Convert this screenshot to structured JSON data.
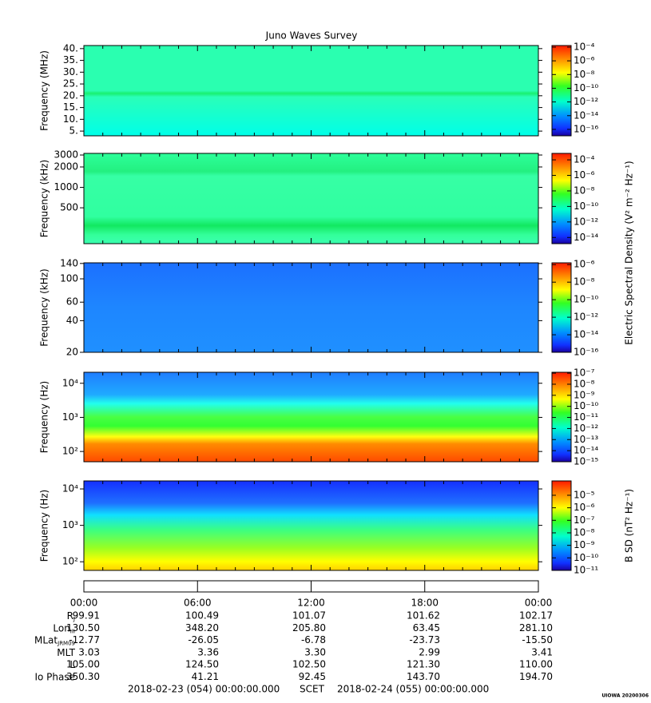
{
  "title": "Juno Waves Survey",
  "chart_data": [
    {
      "type": "spectrogram",
      "y_label": "Frequency (MHz)",
      "log_y": false,
      "ylim": [
        3,
        41.3
      ],
      "yticks": [
        {
          "value": 40,
          "label": "40."
        },
        {
          "value": 35,
          "label": "35."
        },
        {
          "value": 30,
          "label": "30."
        },
        {
          "value": 25,
          "label": "25."
        },
        {
          "value": 20,
          "label": "20."
        },
        {
          "value": 15,
          "label": "15."
        },
        {
          "value": 10,
          "label": "10."
        },
        {
          "value": 5,
          "label": "5."
        }
      ],
      "colorbar": {
        "log": true,
        "lim": [
          1.15e-17,
          0.00017
        ],
        "ticks": [
          {
            "value": 0.0001,
            "label": "10⁻⁴"
          },
          {
            "value": 1e-06,
            "label": "10⁻⁶"
          },
          {
            "value": 1e-08,
            "label": "10⁻⁸"
          },
          {
            "value": 1e-10,
            "label": "10⁻¹⁰"
          },
          {
            "value": 1e-12,
            "label": "10⁻¹²"
          },
          {
            "value": 1e-14,
            "label": "10⁻¹⁴"
          },
          {
            "value": 1e-16,
            "label": "10⁻¹⁶"
          }
        ]
      }
    },
    {
      "type": "spectrogram",
      "y_label": "Frequency (kHz)",
      "log_y": true,
      "ylim": [
        148,
        3170
      ],
      "yticks": [
        3000,
        2000,
        1000,
        500
      ],
      "colorbar": {
        "log": true,
        "lim": [
          1.6e-15,
          0.00068
        ],
        "label": "Electric Spectral Density (V² m⁻² Hz⁻¹)",
        "ticks": [
          {
            "value": 0.0001,
            "label": "10⁻⁴"
          },
          {
            "value": 1e-06,
            "label": "10⁻⁶"
          },
          {
            "value": 1e-08,
            "label": "10⁻⁸"
          },
          {
            "value": 1e-10,
            "label": "10⁻¹⁰"
          },
          {
            "value": 1e-12,
            "label": "10⁻¹²"
          },
          {
            "value": 1e-14,
            "label": "10⁻¹⁴"
          }
        ]
      }
    },
    {
      "type": "spectrogram",
      "y_label": "Frequency (kHz)",
      "log_y": true,
      "ylim": [
        20,
        142
      ],
      "yticks": [
        140,
        100,
        60,
        40,
        20
      ],
      "colorbar": {
        "log": true,
        "lim": [
          1e-16,
          1.6e-06
        ],
        "ticks": [
          {
            "value": 1e-06,
            "label": "10⁻⁶"
          },
          {
            "value": 1e-08,
            "label": "10⁻⁸"
          },
          {
            "value": 1e-10,
            "label": "10⁻¹⁰"
          },
          {
            "value": 1e-12,
            "label": "10⁻¹²"
          },
          {
            "value": 1e-14,
            "label": "10⁻¹⁴"
          },
          {
            "value": 1e-16,
            "label": "10⁻¹⁶"
          }
        ]
      }
    },
    {
      "type": "spectrogram",
      "y_label": "Frequency (Hz)",
      "log_y": true,
      "ylim": [
        50,
        21000
      ],
      "yticks": [
        {
          "value": 10000,
          "label": "10⁴"
        },
        {
          "value": 1000,
          "label": "10³"
        },
        {
          "value": 100,
          "label": "10²"
        }
      ],
      "colorbar": {
        "log": true,
        "lim": [
          1e-15,
          1.2e-07
        ],
        "ticks": [
          {
            "value": 1e-07,
            "label": "10⁻⁷"
          },
          {
            "value": 1e-08,
            "label": "10⁻⁸"
          },
          {
            "value": 1e-09,
            "label": "10⁻⁹"
          },
          {
            "value": 1e-10,
            "label": "10⁻¹⁰"
          },
          {
            "value": 1e-11,
            "label": "10⁻¹¹"
          },
          {
            "value": 1e-12,
            "label": "10⁻¹²"
          },
          {
            "value": 1e-13,
            "label": "10⁻¹³"
          },
          {
            "value": 1e-14,
            "label": "10⁻¹⁴"
          },
          {
            "value": 1e-15,
            "label": "10⁻¹⁵"
          }
        ]
      }
    },
    {
      "type": "spectrogram",
      "y_label": "Frequency (Hz)",
      "log_y": true,
      "ylim": [
        58,
        16600
      ],
      "yticks": [
        {
          "value": 10000,
          "label": "10⁴"
        },
        {
          "value": 1000,
          "label": "10³"
        },
        {
          "value": 100,
          "label": "10²"
        }
      ],
      "colorbar": {
        "log": true,
        "lim": [
          1e-11,
          0.00014
        ],
        "label": "B SD (nT² Hz⁻¹)",
        "ticks": [
          {
            "value": 1e-05,
            "label": "10⁻⁵"
          },
          {
            "value": 1e-06,
            "label": "10⁻⁶"
          },
          {
            "value": 1e-07,
            "label": "10⁻⁷"
          },
          {
            "value": 1e-08,
            "label": "10⁻⁸"
          },
          {
            "value": 1e-09,
            "label": "10⁻⁹"
          },
          {
            "value": 1e-10,
            "label": "10⁻¹⁰"
          },
          {
            "value": 1e-11,
            "label": "10⁻¹¹"
          }
        ]
      }
    }
  ],
  "time_axis": {
    "ticks": [
      "00:00",
      "06:00",
      "12:00",
      "18:00",
      "00:00"
    ]
  },
  "ephemeris": {
    "rows": [
      {
        "label": "R",
        "sub": "J",
        "values": [
          "99.91",
          "100.49",
          "101.07",
          "101.62",
          "102.17"
        ]
      },
      {
        "label": "Lon",
        "sub": "III",
        "values": [
          "130.50",
          "348.20",
          "205.80",
          "63.45",
          "281.10"
        ]
      },
      {
        "label": "MLat",
        "sub": "JRM09",
        "values": [
          "-12.77",
          "-26.05",
          "-6.78",
          "-23.73",
          "-15.50"
        ]
      },
      {
        "label": "MLT",
        "values": [
          "3.03",
          "3.36",
          "3.30",
          "2.99",
          "3.41"
        ]
      },
      {
        "label": "L",
        "values": [
          "105.00",
          "124.50",
          "102.50",
          "121.30",
          "110.00"
        ]
      },
      {
        "label": "Io Phase",
        "values": [
          "350.30",
          "41.21",
          "92.45",
          "143.70",
          "194.70"
        ]
      }
    ]
  },
  "footer": {
    "start": "2018-02-23 (054) 00:00:00.000",
    "scet": "SCET",
    "end": "2018-02-24 (055) 00:00:00.000"
  },
  "stamp": "UIOWA 20200306"
}
